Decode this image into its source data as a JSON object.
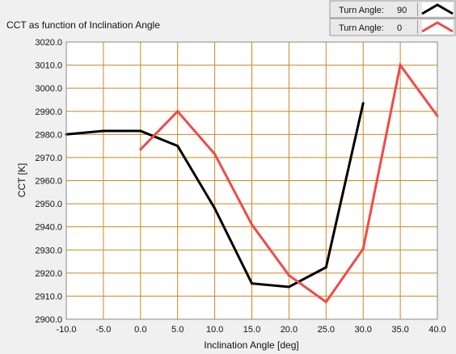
{
  "chart_data": {
    "type": "line",
    "title": "CCT as function of Inclination Angle",
    "xlabel": "Inclination Angle [deg]",
    "ylabel": "CCT [K]",
    "xlim": [
      -10.0,
      40.0
    ],
    "ylim": [
      2900.0,
      3020.0
    ],
    "x_ticks": [
      "-10.0",
      "-5.0",
      "0.0",
      "5.0",
      "10.0",
      "15.0",
      "20.0",
      "25.0",
      "30.0",
      "35.0",
      "40.0"
    ],
    "y_ticks": [
      "2900.0",
      "2910.0",
      "2920.0",
      "2930.0",
      "2940.0",
      "2950.0",
      "2960.0",
      "2970.0",
      "2980.0",
      "2990.0",
      "3000.0",
      "3010.0",
      "3020.0"
    ],
    "grid": true,
    "legend_position": "top-right",
    "colors": {
      "plot_background": "#ffffff",
      "panel_background": "#f0f0f0",
      "grid": "#c8891e"
    },
    "series": [
      {
        "name": "Turn Angle:",
        "legend_value": "90",
        "color": "#000000",
        "x": [
          -10,
          -5,
          0,
          5,
          10,
          15,
          20,
          25,
          30
        ],
        "y": [
          2980,
          2981.5,
          2981.5,
          2975,
          2948,
          2915.5,
          2914,
          2922.5,
          2993.5
        ]
      },
      {
        "name": "Turn Angle:",
        "legend_value": "0",
        "color": "#f04a4a",
        "x": [
          0,
          5,
          10,
          15,
          20,
          25,
          30,
          35,
          40
        ],
        "y": [
          2973.5,
          2990,
          2971.5,
          2941,
          2919,
          2907.5,
          2930.5,
          3010,
          2988
        ]
      }
    ]
  }
}
